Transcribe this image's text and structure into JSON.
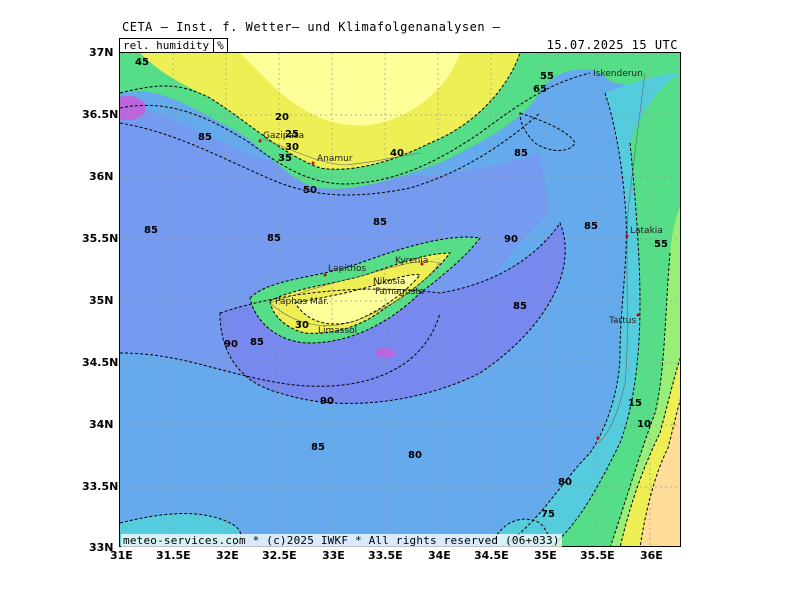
{
  "header": {
    "title": "CETA – Inst. f. Wetter– und Klimafolgenanalysen –",
    "variable": "rel. humidity",
    "unit": "%",
    "datetime": "15.07.2025  15 UTC"
  },
  "axes": {
    "lat_labels": [
      "37N",
      "36.5N",
      "36N",
      "35.5N",
      "35N",
      "34.5N",
      "34N",
      "33.5N",
      "33N"
    ],
    "lon_labels": [
      "31E",
      "31.5E",
      "32E",
      "32.5E",
      "33E",
      "33.5E",
      "34E",
      "34.5E",
      "35E",
      "35.5E",
      "36E"
    ]
  },
  "footer": "meteo-services.com * (c)2025 IWKF * All rights reserved (06+033)",
  "colors": {
    "sea_blue": "#66aaee",
    "moist_blue": "#7799ee",
    "very_moist": "#7788ee",
    "cyan": "#55ccdd",
    "green": "#55dd88",
    "light_green": "#99ee77",
    "yellow": "#eeee55",
    "pale_yellow": "#ffff99",
    "orange_dry": "#ffdd99"
  },
  "cities": [
    "Gazipasa",
    "Anamur",
    "Lapithos",
    "Kyrenia",
    "Nikosia",
    "Famagusta",
    "Paphos Mar.",
    "Limassol",
    "Latakia",
    "Tartus",
    "Iskenderun"
  ],
  "contour_labels": [
    "45",
    "20",
    "25",
    "30",
    "35",
    "40",
    "85",
    "50",
    "55",
    "65",
    "90",
    "80",
    "75",
    "15",
    "10"
  ]
}
